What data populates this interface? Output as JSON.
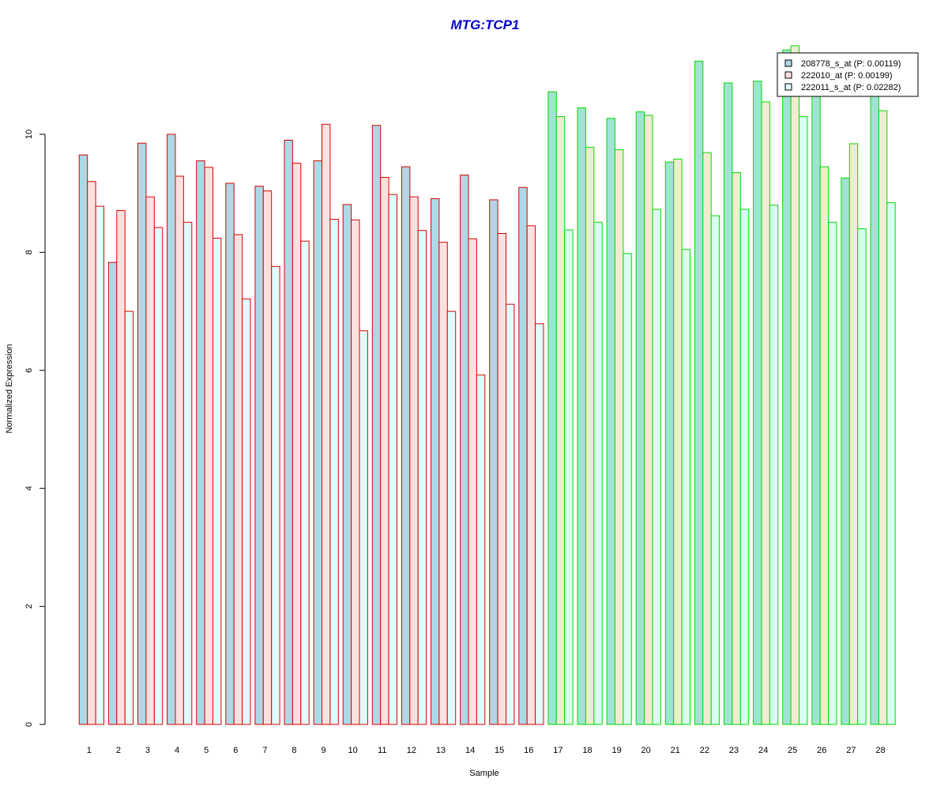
{
  "chart_data": {
    "type": "bar",
    "title": "MTG:TCP1",
    "xlabel": "Sample",
    "ylabel": "Normalized Expression",
    "ylim": [
      0,
      11.5
    ],
    "yticks": [
      0,
      2,
      4,
      6,
      8,
      10
    ],
    "grid": false,
    "legend_position": "top-right",
    "categories": [
      "1",
      "2",
      "3",
      "4",
      "5",
      "6",
      "7",
      "8",
      "9",
      "10",
      "11",
      "12",
      "13",
      "14",
      "15",
      "16",
      "17",
      "18",
      "19",
      "20",
      "21",
      "22",
      "23",
      "24",
      "25",
      "26",
      "27",
      "28"
    ],
    "groups": [
      {
        "samples_from": 1,
        "samples_to": 16,
        "border_color": "#dd0000"
      },
      {
        "samples_from": 17,
        "samples_to": 28,
        "border_color": "#00dd00"
      }
    ],
    "series": [
      {
        "name": "208778_s_at (P: 0.00119)",
        "fill_group1": "#add8e6",
        "fill_group2": "#a0e3d2",
        "values": [
          9.65,
          7.83,
          9.85,
          10.0,
          9.55,
          9.17,
          9.12,
          9.9,
          9.55,
          8.81,
          10.15,
          9.45,
          8.91,
          9.31,
          8.89,
          9.1,
          10.72,
          10.45,
          10.27,
          10.38,
          9.53,
          11.24,
          10.87,
          10.9,
          11.43,
          11.3,
          9.26,
          10.71
        ]
      },
      {
        "name": "222010_at (P: 0.00199)",
        "fill_group1": "#ffe0e0",
        "fill_group2": "#f0ecd0",
        "values": [
          9.2,
          8.71,
          8.94,
          9.29,
          9.44,
          8.3,
          9.04,
          9.51,
          10.17,
          8.55,
          9.27,
          8.94,
          8.17,
          8.23,
          8.32,
          8.45,
          10.3,
          9.78,
          9.74,
          10.32,
          9.58,
          9.69,
          9.35,
          10.55,
          11.5,
          9.45,
          9.84,
          10.4
        ]
      },
      {
        "name": "222011_s_at (P: 0.02282)",
        "fill_group1": "#e0ffff",
        "fill_group2": "#d8fff0",
        "values": [
          8.78,
          7.0,
          8.42,
          8.51,
          8.24,
          7.21,
          7.76,
          8.19,
          8.56,
          6.67,
          8.98,
          8.37,
          7.0,
          5.92,
          7.12,
          6.79,
          8.38,
          8.51,
          7.98,
          8.73,
          8.05,
          8.62,
          8.73,
          8.8,
          10.3,
          8.51,
          8.4,
          8.84
        ]
      }
    ],
    "title_color": "#0000cc",
    "legend_swatches": [
      "#add8e6",
      "#ffe0e0",
      "#e0ffff"
    ]
  }
}
